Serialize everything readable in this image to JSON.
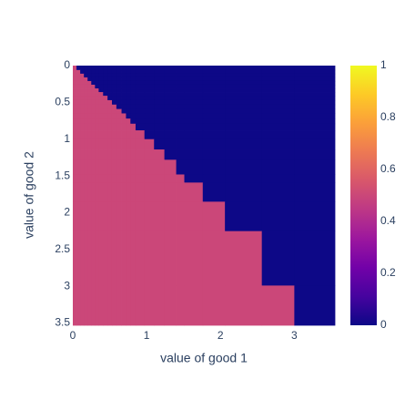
{
  "chart_data": {
    "type": "heatmap",
    "x_title": "value of good 1",
    "y_title": "value of good 2",
    "x_edges": [
      0,
      0.05,
      0.1,
      0.15,
      0.2,
      0.25,
      0.3,
      0.35,
      0.41,
      0.47,
      0.53,
      0.59,
      0.66,
      0.72,
      0.78,
      0.85,
      0.97,
      1.1,
      1.24,
      1.4,
      1.51,
      1.76,
      2.06,
      2.56,
      3.0,
      3.55
    ],
    "y_edges": [
      0,
      0.06,
      0.11,
      0.16,
      0.21,
      0.26,
      0.31,
      0.36,
      0.41,
      0.47,
      0.53,
      0.59,
      0.65,
      0.72,
      0.79,
      0.88,
      1.0,
      1.14,
      1.28,
      1.48,
      1.59,
      1.85,
      2.25,
      2.99,
      3.53
    ],
    "z": [
      [
        0.5,
        0,
        0,
        0,
        0,
        0,
        0,
        0,
        0,
        0,
        0,
        0,
        0,
        0,
        0,
        0,
        0,
        0,
        0,
        0,
        0,
        0,
        0,
        0,
        0
      ],
      [
        0.5,
        0.5,
        0,
        0,
        0,
        0,
        0,
        0,
        0,
        0,
        0,
        0,
        0,
        0,
        0,
        0,
        0,
        0,
        0,
        0,
        0,
        0,
        0,
        0,
        0
      ],
      [
        0.5,
        0.5,
        0.5,
        0,
        0,
        0,
        0,
        0,
        0,
        0,
        0,
        0,
        0,
        0,
        0,
        0,
        0,
        0,
        0,
        0,
        0,
        0,
        0,
        0,
        0
      ],
      [
        0.5,
        0.5,
        0.5,
        0.5,
        0,
        0,
        0,
        0,
        0,
        0,
        0,
        0,
        0,
        0,
        0,
        0,
        0,
        0,
        0,
        0,
        0,
        0,
        0,
        0,
        0
      ],
      [
        0.5,
        0.5,
        0.5,
        0.5,
        0.5,
        0,
        0,
        0,
        0,
        0,
        0,
        0,
        0,
        0,
        0,
        0,
        0,
        0,
        0,
        0,
        0,
        0,
        0,
        0,
        0
      ],
      [
        0.5,
        0.5,
        0.5,
        0.5,
        0.5,
        0.5,
        0,
        0,
        0,
        0,
        0,
        0,
        0,
        0,
        0,
        0,
        0,
        0,
        0,
        0,
        0,
        0,
        0,
        0,
        0
      ],
      [
        0.5,
        0.5,
        0.5,
        0.5,
        0.5,
        0.5,
        0.5,
        0,
        0,
        0,
        0,
        0,
        0,
        0,
        0,
        0,
        0,
        0,
        0,
        0,
        0,
        0,
        0,
        0,
        0
      ],
      [
        0.5,
        0.5,
        0.5,
        0.5,
        0.5,
        0.5,
        0.5,
        0.5,
        0,
        0,
        0,
        0,
        0,
        0,
        0,
        0,
        0,
        0,
        0,
        0,
        0,
        0,
        0,
        0,
        0
      ],
      [
        0.5,
        0.5,
        0.5,
        0.5,
        0.5,
        0.5,
        0.5,
        0.5,
        0.5,
        0,
        0,
        0,
        0,
        0,
        0,
        0,
        0,
        0,
        0,
        0,
        0,
        0,
        0,
        0,
        0
      ],
      [
        0.5,
        0.5,
        0.5,
        0.5,
        0.5,
        0.5,
        0.5,
        0.5,
        0.5,
        0.5,
        0,
        0,
        0,
        0,
        0,
        0,
        0,
        0,
        0,
        0,
        0,
        0,
        0,
        0,
        0
      ],
      [
        0.5,
        0.5,
        0.5,
        0.5,
        0.5,
        0.5,
        0.5,
        0.5,
        0.5,
        0.5,
        0.5,
        0,
        0,
        0,
        0,
        0,
        0,
        0,
        0,
        0,
        0,
        0,
        0,
        0,
        0
      ],
      [
        0.5,
        0.5,
        0.5,
        0.5,
        0.5,
        0.5,
        0.5,
        0.5,
        0.5,
        0.5,
        0.5,
        0.5,
        0,
        0,
        0,
        0,
        0,
        0,
        0,
        0,
        0,
        0,
        0,
        0,
        0
      ],
      [
        0.5,
        0.5,
        0.5,
        0.5,
        0.5,
        0.5,
        0.5,
        0.5,
        0.5,
        0.5,
        0.5,
        0.5,
        0.5,
        0,
        0,
        0,
        0,
        0,
        0,
        0,
        0,
        0,
        0,
        0,
        0
      ],
      [
        0.5,
        0.5,
        0.5,
        0.5,
        0.5,
        0.5,
        0.5,
        0.5,
        0.5,
        0.5,
        0.5,
        0.5,
        0.5,
        0.5,
        0,
        0,
        0,
        0,
        0,
        0,
        0,
        0,
        0,
        0,
        0
      ],
      [
        0.5,
        0.5,
        0.5,
        0.5,
        0.5,
        0.5,
        0.5,
        0.5,
        0.5,
        0.5,
        0.5,
        0.5,
        0.5,
        0.5,
        0.5,
        0,
        0,
        0,
        0,
        0,
        0,
        0,
        0,
        0,
        0
      ],
      [
        0.5,
        0.5,
        0.5,
        0.5,
        0.5,
        0.5,
        0.5,
        0.5,
        0.5,
        0.5,
        0.5,
        0.5,
        0.5,
        0.5,
        0.5,
        0.5,
        0,
        0,
        0,
        0,
        0,
        0,
        0,
        0,
        0
      ],
      [
        0.5,
        0.5,
        0.5,
        0.5,
        0.5,
        0.5,
        0.5,
        0.5,
        0.5,
        0.5,
        0.5,
        0.5,
        0.5,
        0.5,
        0.5,
        0.5,
        0.5,
        0,
        0,
        0,
        0,
        0,
        0,
        0,
        0
      ],
      [
        0.5,
        0.5,
        0.5,
        0.5,
        0.5,
        0.5,
        0.5,
        0.5,
        0.5,
        0.5,
        0.5,
        0.5,
        0.5,
        0.5,
        0.5,
        0.5,
        0.5,
        0.5,
        0,
        0,
        0,
        0,
        0,
        0,
        0
      ],
      [
        0.5,
        0.5,
        0.5,
        0.5,
        0.5,
        0.5,
        0.5,
        0.5,
        0.5,
        0.5,
        0.5,
        0.5,
        0.5,
        0.5,
        0.5,
        0.5,
        0.5,
        0.5,
        0.5,
        0,
        0,
        0,
        0,
        0,
        0
      ],
      [
        0.5,
        0.5,
        0.5,
        0.5,
        0.5,
        0.5,
        0.5,
        0.5,
        0.5,
        0.5,
        0.5,
        0.5,
        0.5,
        0.5,
        0.5,
        0.5,
        0.5,
        0.5,
        0.5,
        0.5,
        0,
        0,
        0,
        0,
        0
      ],
      [
        0.5,
        0.5,
        0.5,
        0.5,
        0.5,
        0.5,
        0.5,
        0.5,
        0.5,
        0.5,
        0.5,
        0.5,
        0.5,
        0.5,
        0.5,
        0.5,
        0.5,
        0.5,
        0.5,
        0.5,
        0.5,
        0,
        0,
        0,
        0
      ],
      [
        0.5,
        0.5,
        0.5,
        0.5,
        0.5,
        0.5,
        0.5,
        0.5,
        0.5,
        0.5,
        0.5,
        0.5,
        0.5,
        0.5,
        0.5,
        0.5,
        0.5,
        0.5,
        0.5,
        0.5,
        0.5,
        0.5,
        0,
        0,
        0
      ],
      [
        0.5,
        0.5,
        0.5,
        0.5,
        0.5,
        0.5,
        0.5,
        0.5,
        0.5,
        0.5,
        0.5,
        0.5,
        0.5,
        0.5,
        0.5,
        0.5,
        0.5,
        0.5,
        0.5,
        0.5,
        0.5,
        0.5,
        0.5,
        0,
        0
      ],
      [
        0.5,
        0.5,
        0.5,
        0.5,
        0.5,
        0.5,
        0.5,
        0.5,
        0.5,
        0.5,
        0.5,
        0.5,
        0.5,
        0.5,
        0.5,
        0.5,
        0.5,
        0.5,
        0.5,
        0.5,
        0.5,
        0.5,
        0.5,
        0.5,
        0
      ]
    ],
    "xlim": [
      0,
      3.55
    ],
    "xticks": [
      0,
      1,
      2,
      3
    ],
    "ylim": [
      0,
      3.53
    ],
    "yticks": [
      0,
      0.5,
      1,
      1.5,
      2,
      2.5,
      3,
      3.5
    ],
    "y_reversed": true,
    "zlim": [
      0,
      1
    ],
    "colorbar_ticks": [
      0,
      0.2,
      0.4,
      0.6,
      0.8,
      1
    ],
    "colorscale": [
      [
        0,
        "#0d0887"
      ],
      [
        0.111,
        "#46039f"
      ],
      [
        0.222,
        "#7201a8"
      ],
      [
        0.333,
        "#9c179e"
      ],
      [
        0.444,
        "#bd3786"
      ],
      [
        0.556,
        "#d8576b"
      ],
      [
        0.667,
        "#ed7953"
      ],
      [
        0.778,
        "#fb9f3a"
      ],
      [
        0.889,
        "#fdca26"
      ],
      [
        1,
        "#f0f921"
      ]
    ]
  }
}
